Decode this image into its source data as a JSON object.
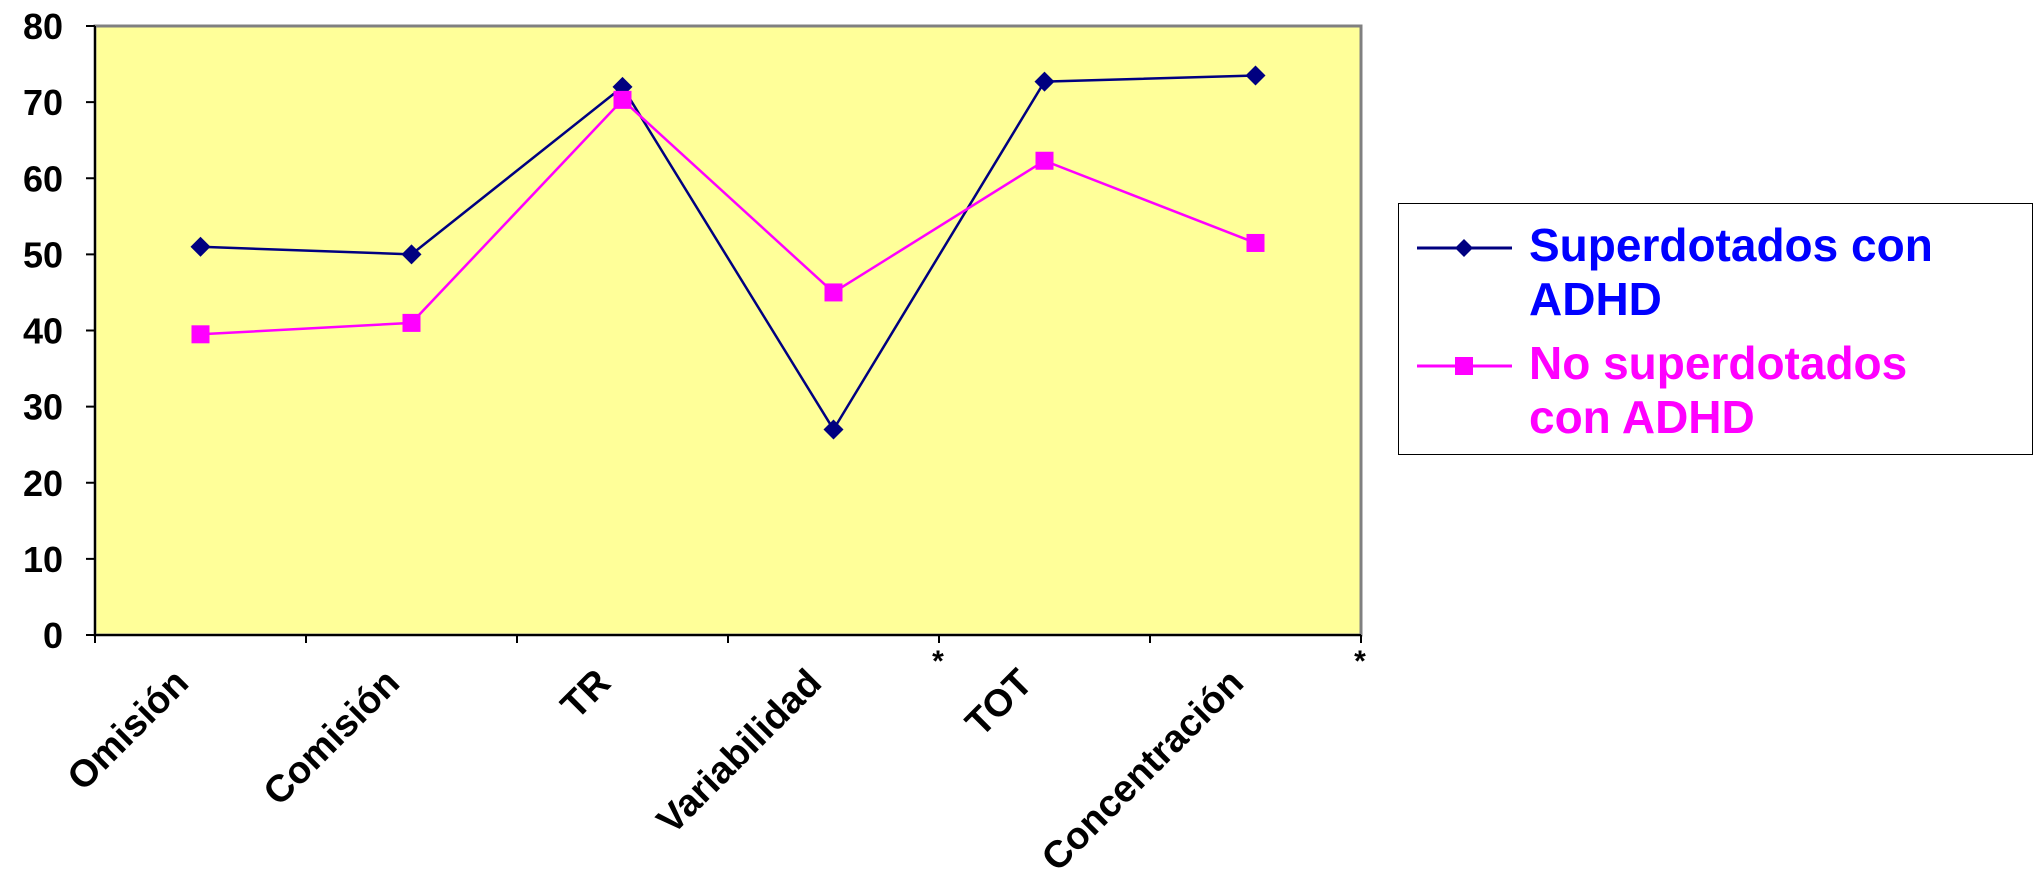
{
  "chart_data": {
    "type": "line",
    "categories": [
      "Omisión",
      "Comisión",
      "TR",
      "Variabilidad",
      "TOT",
      "Concentración"
    ],
    "category_markers": [
      "",
      "",
      "",
      "*",
      "",
      "*"
    ],
    "series": [
      {
        "name": "Superdotados con ADHD",
        "values": [
          51,
          50,
          72,
          27,
          72.7,
          73.5
        ],
        "color": "#000080",
        "marker": "diamond"
      },
      {
        "name": "No superdotados con ADHD",
        "values": [
          39.5,
          41,
          70.3,
          45,
          62.3,
          51.5
        ],
        "color": "#FF00FF",
        "marker": "square"
      }
    ],
    "ylim": [
      0,
      80
    ],
    "yticks": [
      0,
      10,
      20,
      30,
      40,
      50,
      60,
      70,
      80
    ],
    "grid": false,
    "plot_background": "#FFFF99",
    "legend_position": "right",
    "legend_text_colors": [
      "#0000FF",
      "#FF00FF"
    ]
  }
}
